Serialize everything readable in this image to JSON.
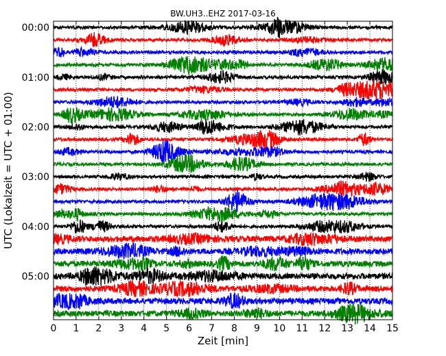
{
  "chart_data": {
    "type": "line",
    "title": "BW.UH3..EHZ 2017-03-16",
    "xlabel": "Zeit  [min]",
    "ylabel": "UTC (Lokalzeit = UTC + 01:00)",
    "xlim": [
      0,
      15
    ],
    "x_ticks": [
      "0",
      "1",
      "2",
      "3",
      "4",
      "5",
      "6",
      "7",
      "8",
      "9",
      "10",
      "11",
      "12",
      "13",
      "14",
      "15"
    ],
    "y_ticks": [
      "00:00",
      "01:00",
      "02:00",
      "03:00",
      "04:00",
      "05:00"
    ],
    "vertical_grid": "dotted, every 1 min",
    "trace_interval_minutes": 15,
    "trace_colors": [
      "#000000",
      "#ff0000",
      "#0000ff",
      "#008000"
    ],
    "traces": [
      {
        "start": "00:00"
      },
      {
        "start": "00:15"
      },
      {
        "start": "00:30"
      },
      {
        "start": "00:45"
      },
      {
        "start": "01:00"
      },
      {
        "start": "01:15"
      },
      {
        "start": "01:30"
      },
      {
        "start": "01:45"
      },
      {
        "start": "02:00"
      },
      {
        "start": "02:15"
      },
      {
        "start": "02:30"
      },
      {
        "start": "02:45"
      },
      {
        "start": "03:00"
      },
      {
        "start": "03:15"
      },
      {
        "start": "03:30"
      },
      {
        "start": "03:45"
      },
      {
        "start": "04:00"
      },
      {
        "start": "04:15"
      },
      {
        "start": "04:30"
      },
      {
        "start": "04:45"
      },
      {
        "start": "05:00"
      },
      {
        "start": "05:15"
      },
      {
        "start": "05:30"
      },
      {
        "start": "05:45"
      }
    ]
  }
}
